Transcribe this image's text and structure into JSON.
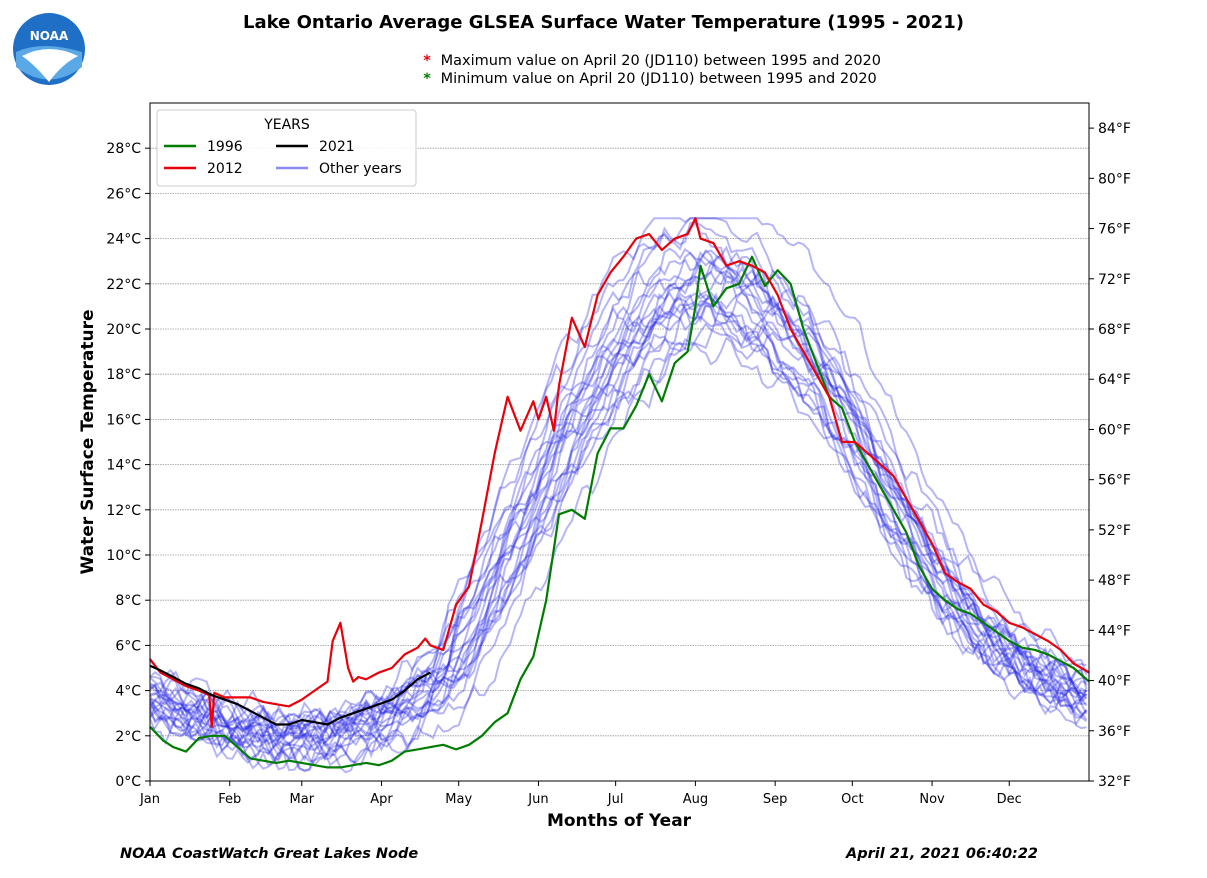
{
  "page": {
    "title": "Lake Ontario Average GLSEA Surface Water Temperature (1995 - 2021)",
    "notes": [
      {
        "symbol": "*",
        "color": "#e8000b",
        "text": "Maximum value on April 20 (JD110) between 1995 and 2020"
      },
      {
        "symbol": "*",
        "color": "#007d00",
        "text": "Minimum  value on April 20 (JD110) between 1995 and 2020"
      }
    ],
    "footer_left": "NOAA CoastWatch Great Lakes Node",
    "footer_right": "April 21, 2021 06:40:22",
    "logo": {
      "icon": "noaa-logo-icon",
      "text": "NOAA",
      "color": "#1f6fc7"
    }
  },
  "chart_data": {
    "type": "line",
    "title": "Lake Ontario Average GLSEA Surface Water Temperature (1995 - 2021)",
    "xlabel": "Months of Year",
    "ylabel": "Water Surface Temperature",
    "x_unit": "day of year",
    "xlim": [
      1,
      366
    ],
    "ylim": [
      0,
      30
    ],
    "y2lim": [
      32,
      86
    ],
    "yticks": [
      0,
      2,
      4,
      6,
      8,
      10,
      12,
      14,
      16,
      18,
      20,
      22,
      24,
      26,
      28
    ],
    "ytick_labels": [
      "0°C",
      "2°C",
      "4°C",
      "6°C",
      "8°C",
      "10°C",
      "12°C",
      "14°C",
      "16°C",
      "18°C",
      "20°C",
      "22°C",
      "24°C",
      "26°C",
      "28°C"
    ],
    "y2ticks": [
      32,
      36,
      40,
      44,
      48,
      52,
      56,
      60,
      64,
      68,
      72,
      76,
      80,
      84
    ],
    "y2tick_labels": [
      "32°F",
      "36°F",
      "40°F",
      "44°F",
      "48°F",
      "52°F",
      "56°F",
      "60°F",
      "64°F",
      "68°F",
      "72°F",
      "76°F",
      "80°F",
      "84°F"
    ],
    "xticks": [
      1,
      32,
      60,
      91,
      121,
      152,
      182,
      213,
      244,
      274,
      305,
      335
    ],
    "xtick_labels": [
      "Jan",
      "Feb",
      "Mar",
      "Apr",
      "May",
      "Jun",
      "Jul",
      "Aug",
      "Sep",
      "Oct",
      "Nov",
      "Dec"
    ],
    "grid": "horizontal",
    "legend": {
      "title": "YEARS",
      "placement": "top-left",
      "entries": [
        {
          "label": "1996",
          "color": "#007d00"
        },
        {
          "label": "2021",
          "color": "#000000"
        },
        {
          "label": "2012",
          "color": "#e8000b"
        },
        {
          "label": "Other years",
          "color": "#6d6df2"
        }
      ]
    },
    "series": [
      {
        "name": "1996",
        "color": "#007d00",
        "x": [
          1,
          6,
          10,
          15,
          20,
          25,
          30,
          35,
          40,
          45,
          50,
          55,
          60,
          65,
          70,
          75,
          80,
          85,
          90,
          95,
          100,
          105,
          110,
          115,
          120,
          125,
          130,
          135,
          140,
          145,
          150,
          152,
          155,
          160,
          165,
          170,
          175,
          180,
          185,
          190,
          195,
          200,
          205,
          210,
          213,
          215,
          220,
          225,
          230,
          235,
          240,
          245,
          250,
          255,
          260,
          265,
          270,
          275,
          280,
          285,
          290,
          295,
          300,
          305,
          310,
          315,
          320,
          325,
          330,
          335,
          340,
          345,
          350,
          355,
          360,
          366
        ],
        "y": [
          2.4,
          1.8,
          1.5,
          1.3,
          1.9,
          2.0,
          2.0,
          1.5,
          1.0,
          0.9,
          0.8,
          0.9,
          0.8,
          0.7,
          0.6,
          0.6,
          0.7,
          0.8,
          0.7,
          0.9,
          1.3,
          1.4,
          1.5,
          1.6,
          1.4,
          1.6,
          2.0,
          2.6,
          3.0,
          4.5,
          5.5,
          6.5,
          8.0,
          11.8,
          12.0,
          11.6,
          14.5,
          15.6,
          15.6,
          16.6,
          18.0,
          16.8,
          18.5,
          19.0,
          21.0,
          22.8,
          21.0,
          21.8,
          22.0,
          23.2,
          21.9,
          22.6,
          22.0,
          20.0,
          18.5,
          17.0,
          16.5,
          15.0,
          14.0,
          13.0,
          12.0,
          11.0,
          9.5,
          8.5,
          8.0,
          7.6,
          7.4,
          7.0,
          6.6,
          6.2,
          5.9,
          5.8,
          5.6,
          5.3,
          5.0,
          4.4
        ]
      },
      {
        "name": "2012",
        "color": "#e8000b",
        "x": [
          1,
          5,
          10,
          15,
          20,
          24,
          25,
          26,
          30,
          35,
          40,
          45,
          50,
          55,
          60,
          65,
          70,
          72,
          75,
          78,
          80,
          82,
          85,
          90,
          95,
          100,
          105,
          108,
          110,
          115,
          120,
          125,
          130,
          135,
          138,
          140,
          145,
          150,
          152,
          155,
          158,
          160,
          165,
          170,
          175,
          180,
          185,
          190,
          195,
          200,
          205,
          210,
          213,
          215,
          220,
          225,
          230,
          235,
          240,
          245,
          250,
          255,
          260,
          265,
          270,
          275,
          280,
          285,
          290,
          295,
          300,
          305,
          310,
          315,
          320,
          325,
          330,
          335,
          340,
          345,
          350,
          355,
          360,
          366
        ],
        "y": [
          5.4,
          4.8,
          4.5,
          4.2,
          4.0,
          3.8,
          2.4,
          3.9,
          3.7,
          3.7,
          3.7,
          3.5,
          3.4,
          3.3,
          3.6,
          4.0,
          4.4,
          6.2,
          7.0,
          5.0,
          4.4,
          4.6,
          4.5,
          4.8,
          5.0,
          5.6,
          5.9,
          6.3,
          6.0,
          5.8,
          7.8,
          8.6,
          11.5,
          14.5,
          16.0,
          17.0,
          15.5,
          16.8,
          16.0,
          17.0,
          15.5,
          17.5,
          20.5,
          19.2,
          21.5,
          22.5,
          23.2,
          24.0,
          24.2,
          23.5,
          24.0,
          24.2,
          24.9,
          24.0,
          23.8,
          22.8,
          23.0,
          22.8,
          22.5,
          21.5,
          20.0,
          19.0,
          18.0,
          17.0,
          15.0,
          15.0,
          14.5,
          14.0,
          13.5,
          12.5,
          11.5,
          10.5,
          9.2,
          8.8,
          8.5,
          7.8,
          7.5,
          7.0,
          6.8,
          6.5,
          6.2,
          5.8,
          5.2,
          4.8
        ]
      },
      {
        "name": "2021",
        "color": "#000000",
        "x": [
          1,
          5,
          10,
          15,
          20,
          25,
          30,
          35,
          40,
          45,
          50,
          55,
          60,
          65,
          70,
          75,
          80,
          85,
          90,
          95,
          100,
          105,
          110
        ],
        "y": [
          5.1,
          4.9,
          4.6,
          4.3,
          4.1,
          3.8,
          3.6,
          3.4,
          3.1,
          2.8,
          2.5,
          2.5,
          2.7,
          2.6,
          2.5,
          2.8,
          3.0,
          3.2,
          3.4,
          3.6,
          4.0,
          4.5,
          4.8
        ]
      }
    ],
    "other_years": {
      "label": "Other years",
      "color": "#6d6df2",
      "count": 24,
      "years": "1995-2021 (excluding 1996, 2012, 2021)"
    }
  }
}
